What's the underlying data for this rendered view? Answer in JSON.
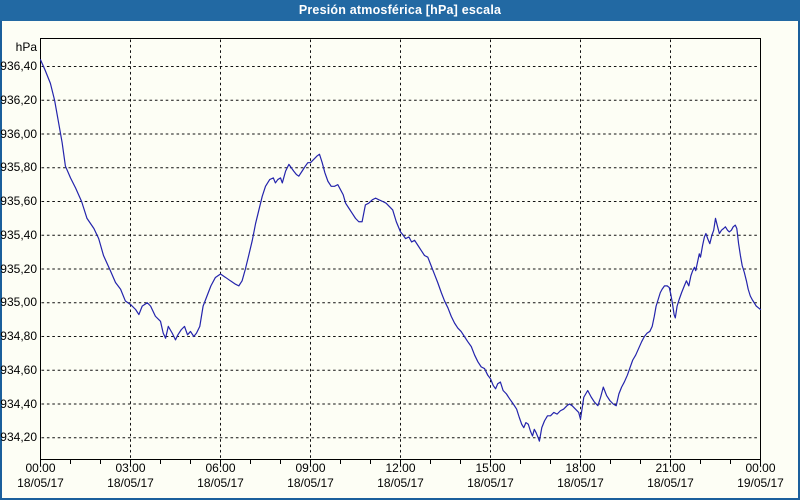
{
  "window": {
    "title": "Presión atmosférica [hPa] escala"
  },
  "colors": {
    "title_bar": "#2269a3",
    "window_border": "#1b5f9b",
    "window_bg": "#fdfef5",
    "grid": "#111111",
    "line": "#2424ac",
    "text": "#000000"
  },
  "chart_data": {
    "type": "line",
    "title": "Presión atmosférica [hPa] escala",
    "ylabel": "hPa",
    "xlabel": "",
    "grid": "dashed",
    "legend": "none",
    "ylim": [
      934.07,
      936.57
    ],
    "xlim_hours": [
      0,
      24
    ],
    "yticks": {
      "values": [
        936.4,
        936.2,
        936.0,
        935.8,
        935.6,
        935.4,
        935.2,
        935.0,
        934.8,
        934.6,
        934.4,
        934.2
      ],
      "labels": [
        "936,40",
        "936,20",
        "936,00",
        "935,80",
        "935,60",
        "935,40",
        "935,20",
        "935,00",
        "934,80",
        "934,60",
        "934,40",
        "934,20"
      ]
    },
    "xticks": {
      "hours": [
        0,
        3,
        6,
        9,
        12,
        15,
        18,
        21,
        24
      ],
      "time_labels": [
        "00:00",
        "03:00",
        "06:00",
        "09:00",
        "12:00",
        "15:00",
        "18:00",
        "21:00",
        "00:00"
      ],
      "date_labels": [
        "18/05/17",
        "18/05/17",
        "18/05/17",
        "18/05/17",
        "18/05/17",
        "18/05/17",
        "18/05/17",
        "18/05/17",
        "19/05/17"
      ]
    },
    "minor_tick_every_hours": 1,
    "series": [
      {
        "name": "Presión atmosférica",
        "color": "#2424ac",
        "points": [
          [
            0.0,
            936.44
          ],
          [
            0.15,
            936.38
          ],
          [
            0.33,
            936.3
          ],
          [
            0.47,
            936.2
          ],
          [
            0.62,
            936.05
          ],
          [
            0.72,
            935.95
          ],
          [
            0.83,
            935.81
          ],
          [
            1.0,
            935.74
          ],
          [
            1.17,
            935.68
          ],
          [
            1.37,
            935.6
          ],
          [
            1.55,
            935.5
          ],
          [
            1.78,
            935.44
          ],
          [
            1.94,
            935.38
          ],
          [
            2.1,
            935.28
          ],
          [
            2.33,
            935.19
          ],
          [
            2.5,
            935.12
          ],
          [
            2.67,
            935.08
          ],
          [
            2.83,
            935.01
          ],
          [
            3.0,
            934.99
          ],
          [
            3.17,
            934.96
          ],
          [
            3.28,
            934.93
          ],
          [
            3.39,
            934.98
          ],
          [
            3.56,
            935.0
          ],
          [
            3.67,
            934.98
          ],
          [
            3.83,
            934.92
          ],
          [
            4.0,
            934.89
          ],
          [
            4.09,
            934.82
          ],
          [
            4.17,
            934.79
          ],
          [
            4.26,
            934.86
          ],
          [
            4.39,
            934.82
          ],
          [
            4.5,
            934.78
          ],
          [
            4.58,
            934.81
          ],
          [
            4.69,
            934.84
          ],
          [
            4.8,
            934.86
          ],
          [
            4.9,
            934.81
          ],
          [
            5.0,
            934.83
          ],
          [
            5.11,
            934.8
          ],
          [
            5.2,
            934.82
          ],
          [
            5.31,
            934.86
          ],
          [
            5.42,
            934.98
          ],
          [
            5.55,
            935.04
          ],
          [
            5.68,
            935.1
          ],
          [
            5.83,
            935.15
          ],
          [
            6.0,
            935.17
          ],
          [
            6.17,
            935.15
          ],
          [
            6.33,
            935.13
          ],
          [
            6.5,
            935.11
          ],
          [
            6.61,
            935.1
          ],
          [
            6.72,
            935.13
          ],
          [
            6.83,
            935.2
          ],
          [
            6.94,
            935.28
          ],
          [
            7.06,
            935.37
          ],
          [
            7.17,
            935.47
          ],
          [
            7.28,
            935.55
          ],
          [
            7.39,
            935.63
          ],
          [
            7.5,
            935.69
          ],
          [
            7.64,
            935.73
          ],
          [
            7.76,
            935.74
          ],
          [
            7.83,
            935.71
          ],
          [
            7.91,
            935.73
          ],
          [
            8.0,
            935.74
          ],
          [
            8.06,
            935.71
          ],
          [
            8.17,
            935.78
          ],
          [
            8.28,
            935.82
          ],
          [
            8.36,
            935.8
          ],
          [
            8.44,
            935.78
          ],
          [
            8.53,
            935.76
          ],
          [
            8.61,
            935.75
          ],
          [
            8.72,
            935.78
          ],
          [
            8.83,
            935.81
          ],
          [
            8.91,
            935.83
          ],
          [
            9.0,
            935.83
          ],
          [
            9.11,
            935.85
          ],
          [
            9.22,
            935.87
          ],
          [
            9.3,
            935.88
          ],
          [
            9.39,
            935.83
          ],
          [
            9.48,
            935.77
          ],
          [
            9.58,
            935.72
          ],
          [
            9.69,
            935.69
          ],
          [
            9.8,
            935.69
          ],
          [
            9.91,
            935.7
          ],
          [
            10.0,
            935.67
          ],
          [
            10.09,
            935.64
          ],
          [
            10.17,
            935.59
          ],
          [
            10.28,
            935.56
          ],
          [
            10.39,
            935.53
          ],
          [
            10.5,
            935.5
          ],
          [
            10.61,
            935.48
          ],
          [
            10.72,
            935.48
          ],
          [
            10.83,
            935.58
          ],
          [
            10.94,
            935.59
          ],
          [
            11.06,
            935.61
          ],
          [
            11.17,
            935.62
          ],
          [
            11.28,
            935.61
          ],
          [
            11.41,
            935.6
          ],
          [
            11.52,
            935.59
          ],
          [
            11.63,
            935.57
          ],
          [
            11.74,
            935.55
          ],
          [
            11.86,
            935.48
          ],
          [
            12.0,
            935.42
          ],
          [
            12.09,
            935.4
          ],
          [
            12.17,
            935.38
          ],
          [
            12.28,
            935.39
          ],
          [
            12.37,
            935.36
          ],
          [
            12.47,
            935.37
          ],
          [
            12.58,
            935.34
          ],
          [
            12.69,
            935.31
          ],
          [
            12.8,
            935.28
          ],
          [
            12.91,
            935.27
          ],
          [
            13.02,
            935.22
          ],
          [
            13.13,
            935.17
          ],
          [
            13.24,
            935.12
          ],
          [
            13.36,
            935.06
          ],
          [
            13.47,
            935.01
          ],
          [
            13.58,
            934.97
          ],
          [
            13.69,
            934.92
          ],
          [
            13.8,
            934.88
          ],
          [
            13.91,
            934.85
          ],
          [
            14.02,
            934.83
          ],
          [
            14.13,
            934.8
          ],
          [
            14.24,
            934.77
          ],
          [
            14.36,
            934.74
          ],
          [
            14.47,
            934.69
          ],
          [
            14.58,
            934.65
          ],
          [
            14.69,
            934.62
          ],
          [
            14.8,
            934.61
          ],
          [
            14.91,
            934.57
          ],
          [
            15.0,
            934.55
          ],
          [
            15.09,
            934.51
          ],
          [
            15.17,
            934.49
          ],
          [
            15.24,
            934.52
          ],
          [
            15.33,
            934.53
          ],
          [
            15.42,
            934.48
          ],
          [
            15.53,
            934.46
          ],
          [
            15.64,
            934.43
          ],
          [
            15.76,
            934.4
          ],
          [
            15.87,
            934.37
          ],
          [
            15.96,
            934.32
          ],
          [
            16.04,
            934.28
          ],
          [
            16.11,
            934.26
          ],
          [
            16.18,
            934.29
          ],
          [
            16.26,
            934.28
          ],
          [
            16.33,
            934.24
          ],
          [
            16.4,
            934.21
          ],
          [
            16.46,
            934.25
          ],
          [
            16.52,
            934.23
          ],
          [
            16.59,
            934.2
          ],
          [
            16.63,
            934.18
          ],
          [
            16.71,
            934.26
          ],
          [
            16.8,
            934.3
          ],
          [
            16.9,
            934.33
          ],
          [
            17.0,
            934.33
          ],
          [
            17.11,
            934.35
          ],
          [
            17.22,
            934.34
          ],
          [
            17.33,
            934.36
          ],
          [
            17.44,
            934.37
          ],
          [
            17.55,
            934.39
          ],
          [
            17.63,
            934.4
          ],
          [
            17.72,
            934.39
          ],
          [
            17.83,
            934.37
          ],
          [
            17.94,
            934.35
          ],
          [
            18.0,
            934.31
          ],
          [
            18.11,
            934.44
          ],
          [
            18.24,
            934.48
          ],
          [
            18.36,
            934.44
          ],
          [
            18.47,
            934.41
          ],
          [
            18.58,
            934.39
          ],
          [
            18.67,
            934.44
          ],
          [
            18.76,
            934.5
          ],
          [
            18.87,
            934.45
          ],
          [
            18.98,
            934.42
          ],
          [
            19.09,
            934.4
          ],
          [
            19.19,
            934.39
          ],
          [
            19.28,
            934.46
          ],
          [
            19.37,
            934.5
          ],
          [
            19.46,
            934.53
          ],
          [
            19.56,
            934.57
          ],
          [
            19.64,
            934.61
          ],
          [
            19.74,
            934.66
          ],
          [
            19.84,
            934.69
          ],
          [
            19.94,
            934.73
          ],
          [
            20.04,
            934.77
          ],
          [
            20.13,
            934.8
          ],
          [
            20.22,
            934.82
          ],
          [
            20.31,
            934.83
          ],
          [
            20.39,
            934.86
          ],
          [
            20.46,
            934.92
          ],
          [
            20.52,
            934.98
          ],
          [
            20.59,
            935.02
          ],
          [
            20.66,
            935.06
          ],
          [
            20.72,
            935.08
          ],
          [
            20.8,
            935.1
          ],
          [
            20.89,
            935.1
          ],
          [
            20.96,
            935.09
          ],
          [
            21.01,
            935.05
          ],
          [
            21.07,
            934.99
          ],
          [
            21.12,
            934.93
          ],
          [
            21.16,
            934.91
          ],
          [
            21.22,
            934.98
          ],
          [
            21.29,
            935.02
          ],
          [
            21.37,
            935.06
          ],
          [
            21.46,
            935.1
          ],
          [
            21.53,
            935.13
          ],
          [
            21.61,
            935.1
          ],
          [
            21.68,
            935.16
          ],
          [
            21.74,
            935.19
          ],
          [
            21.8,
            935.21
          ],
          [
            21.84,
            935.19
          ],
          [
            21.9,
            935.24
          ],
          [
            21.96,
            935.29
          ],
          [
            22.0,
            935.27
          ],
          [
            22.07,
            935.34
          ],
          [
            22.13,
            935.39
          ],
          [
            22.18,
            935.41
          ],
          [
            22.24,
            935.38
          ],
          [
            22.31,
            935.35
          ],
          [
            22.38,
            935.4
          ],
          [
            22.44,
            935.43
          ],
          [
            22.5,
            935.5
          ],
          [
            22.57,
            935.45
          ],
          [
            22.63,
            935.41
          ],
          [
            22.7,
            935.43
          ],
          [
            22.77,
            935.44
          ],
          [
            22.83,
            935.45
          ],
          [
            22.9,
            935.43
          ],
          [
            22.96,
            935.42
          ],
          [
            23.03,
            935.43
          ],
          [
            23.09,
            935.45
          ],
          [
            23.16,
            935.46
          ],
          [
            23.21,
            935.44
          ],
          [
            23.27,
            935.35
          ],
          [
            23.33,
            935.28
          ],
          [
            23.39,
            935.22
          ],
          [
            23.46,
            935.18
          ],
          [
            23.53,
            935.13
          ],
          [
            23.59,
            935.08
          ],
          [
            23.66,
            935.04
          ],
          [
            23.72,
            935.02
          ],
          [
            23.79,
            935.0
          ],
          [
            23.86,
            934.98
          ],
          [
            23.93,
            934.97
          ],
          [
            24.0,
            934.96
          ]
        ]
      }
    ]
  }
}
